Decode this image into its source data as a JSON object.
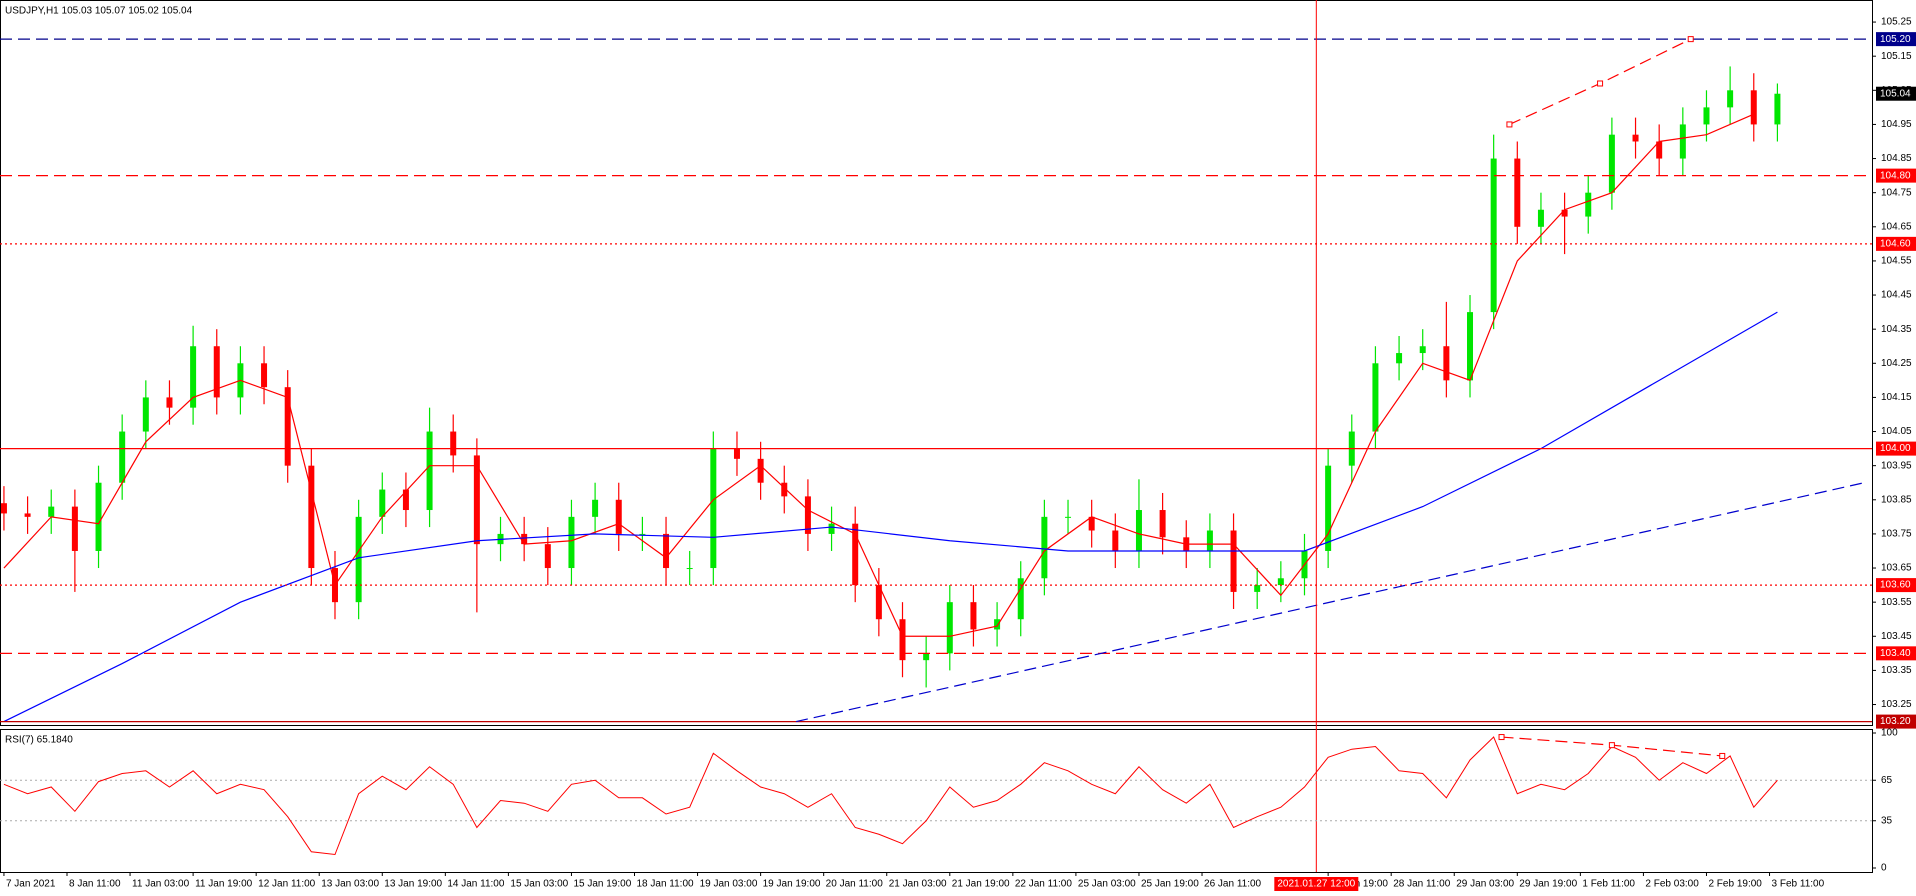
{
  "chart_data": [
    {
      "type": "candlestick",
      "title": "USDJPY,H1  105.03 105.07 105.02 105.04",
      "x": [
        0,
        6,
        12,
        18,
        24,
        30,
        36,
        42,
        48,
        54,
        60,
        66,
        72,
        78,
        84,
        90,
        96,
        102,
        108,
        114,
        120,
        126,
        132,
        138,
        144,
        150,
        156,
        162,
        168,
        174,
        180,
        186,
        192,
        198,
        204,
        210,
        216,
        222,
        228,
        234,
        240,
        246,
        252,
        258,
        264,
        270,
        276,
        282,
        288,
        294,
        300,
        306,
        312,
        318,
        324,
        330,
        336,
        342,
        348,
        354,
        360,
        366,
        372,
        378,
        384,
        390,
        396,
        402,
        408,
        414,
        420,
        426,
        432,
        438,
        444,
        450
      ],
      "open": [
        103.84,
        103.81,
        103.8,
        103.83,
        103.7,
        103.9,
        104.05,
        104.15,
        104.12,
        104.3,
        104.15,
        104.25,
        104.18,
        103.95,
        103.65,
        103.55,
        103.8,
        103.88,
        103.82,
        104.05,
        103.98,
        103.72,
        103.75,
        103.72,
        103.65,
        103.8,
        103.85,
        103.75,
        103.75,
        103.65,
        103.65,
        104.0,
        103.97,
        103.9,
        103.86,
        103.75,
        103.78,
        103.6,
        103.5,
        103.38,
        103.4,
        103.55,
        103.47,
        103.5,
        103.62,
        103.8,
        103.8,
        103.76,
        103.7,
        103.82,
        103.74,
        103.7,
        103.76,
        103.58,
        103.6,
        103.62,
        103.7,
        103.95,
        104.05,
        104.25,
        104.28,
        104.3,
        104.2,
        104.4,
        104.85,
        104.65,
        104.7,
        104.68,
        104.75,
        104.92,
        104.9,
        104.85,
        104.95,
        105.0,
        105.05,
        104.95
      ],
      "high": [
        103.89,
        103.86,
        103.88,
        103.88,
        103.95,
        104.1,
        104.2,
        104.2,
        104.36,
        104.35,
        104.3,
        104.3,
        104.23,
        104.0,
        103.7,
        103.85,
        103.93,
        103.93,
        104.12,
        104.1,
        104.03,
        103.8,
        103.8,
        103.77,
        103.85,
        103.9,
        103.9,
        103.8,
        103.8,
        103.7,
        104.05,
        104.05,
        104.02,
        103.95,
        103.91,
        103.83,
        103.83,
        103.65,
        103.55,
        103.45,
        103.6,
        103.6,
        103.55,
        103.67,
        103.85,
        103.85,
        103.85,
        103.81,
        103.91,
        103.87,
        103.79,
        103.81,
        103.81,
        103.65,
        103.67,
        103.75,
        104.0,
        104.1,
        104.3,
        104.33,
        104.35,
        104.43,
        104.45,
        104.92,
        104.9,
        104.75,
        104.75,
        104.8,
        104.97,
        104.97,
        104.95,
        105.0,
        105.05,
        105.12,
        105.1,
        105.07
      ],
      "low": [
        103.76,
        103.75,
        103.75,
        103.58,
        103.65,
        103.85,
        104.0,
        104.07,
        104.07,
        104.1,
        104.1,
        104.13,
        103.9,
        103.6,
        103.5,
        103.5,
        103.75,
        103.77,
        103.77,
        103.93,
        103.52,
        103.67,
        103.67,
        103.6,
        103.6,
        103.75,
        103.7,
        103.7,
        103.6,
        103.6,
        103.6,
        103.92,
        103.85,
        103.81,
        103.7,
        103.7,
        103.55,
        103.45,
        103.33,
        103.3,
        103.35,
        103.42,
        103.42,
        103.45,
        103.57,
        103.75,
        103.71,
        103.65,
        103.65,
        103.69,
        103.65,
        103.65,
        103.53,
        103.53,
        103.55,
        103.57,
        103.65,
        103.9,
        104.0,
        104.2,
        104.23,
        104.15,
        104.15,
        104.35,
        104.6,
        104.6,
        104.57,
        104.63,
        104.7,
        104.85,
        104.8,
        104.8,
        104.9,
        104.95,
        104.9,
        104.9
      ],
      "close": [
        103.81,
        103.8,
        103.83,
        103.7,
        103.9,
        104.05,
        104.15,
        104.12,
        104.3,
        104.15,
        104.25,
        104.18,
        103.95,
        103.65,
        103.55,
        103.8,
        103.88,
        103.82,
        104.05,
        103.98,
        103.72,
        103.75,
        103.72,
        103.65,
        103.8,
        103.85,
        103.75,
        103.75,
        103.65,
        103.65,
        104.0,
        103.97,
        103.9,
        103.86,
        103.75,
        103.78,
        103.6,
        103.5,
        103.38,
        103.4,
        103.55,
        103.47,
        103.5,
        103.62,
        103.8,
        103.8,
        103.76,
        103.7,
        103.82,
        103.74,
        103.7,
        103.76,
        103.58,
        103.6,
        103.62,
        103.7,
        103.95,
        104.05,
        104.25,
        104.28,
        104.3,
        104.2,
        104.4,
        104.85,
        104.65,
        104.7,
        104.68,
        104.75,
        104.92,
        104.9,
        104.85,
        104.95,
        105.0,
        105.05,
        104.95,
        105.04
      ],
      "up_color": "#00e600",
      "down_color": "#ff0000",
      "overlays": [
        {
          "color": "#ff0000",
          "x": [
            0,
            12,
            24,
            36,
            48,
            60,
            72,
            84,
            96,
            108,
            120,
            132,
            144,
            156,
            168,
            180,
            192,
            204,
            216,
            228,
            240,
            252,
            264,
            276,
            288,
            300,
            312,
            324,
            336,
            348,
            360,
            372,
            384,
            396,
            408,
            420,
            432,
            444
          ],
          "values": [
            103.65,
            103.8,
            103.78,
            104.02,
            104.15,
            104.2,
            104.15,
            103.6,
            103.8,
            103.95,
            103.95,
            103.72,
            103.73,
            103.78,
            103.68,
            103.85,
            103.95,
            103.82,
            103.75,
            103.45,
            103.45,
            103.48,
            103.7,
            103.8,
            103.75,
            103.72,
            103.72,
            103.57,
            103.75,
            104.05,
            104.25,
            104.2,
            104.55,
            104.7,
            104.75,
            104.9,
            104.92,
            104.98
          ]
        },
        {
          "color": "#0000ff",
          "x": [
            0,
            30,
            60,
            90,
            120,
            150,
            180,
            210,
            240,
            270,
            300,
            330,
            360,
            390,
            420,
            450
          ],
          "values": [
            103.2,
            103.37,
            103.55,
            103.68,
            103.73,
            103.75,
            103.74,
            103.77,
            103.73,
            103.7,
            103.7,
            103.7,
            103.83,
            104.0,
            104.2,
            104.4
          ]
        }
      ],
      "levels": [
        {
          "value": 105.2,
          "label": "105.20",
          "color": "#00008b",
          "style": "dashed"
        },
        {
          "value": 104.8,
          "label": "104.80",
          "color": "#ff0000",
          "style": "dashed"
        },
        {
          "value": 104.6,
          "label": "104.60",
          "color": "#ff0000",
          "style": "dotted"
        },
        {
          "value": 104.0,
          "label": "104.00",
          "color": "#ff0000",
          "style": "solid"
        },
        {
          "value": 103.6,
          "label": "103.60",
          "color": "#ff0000",
          "style": "dotted"
        },
        {
          "value": 103.4,
          "label": "103.40",
          "color": "#ff0000",
          "style": "dashed"
        },
        {
          "value": 103.2,
          "label": "103.20",
          "color": "#c00000",
          "style": "solid"
        }
      ],
      "trendlines": [
        {
          "x": [
            201,
            472
          ],
          "values": [
            103.2,
            103.9
          ],
          "color": "#0000cd",
          "style": "dashed"
        },
        {
          "x": [
            382,
            405,
            428
          ],
          "values": [
            104.95,
            105.07,
            105.2
          ],
          "color": "#ff0000",
          "style": "dashed"
        }
      ],
      "current": {
        "value": 105.04,
        "label": "105.04",
        "color": "#000000"
      },
      "crosshair": {
        "value": 333,
        "label": "2021.01.27 12:00",
        "color": "#ff0000"
      },
      "xlim": [
        -1,
        474
      ],
      "ylim": [
        103.19,
        105.3
      ],
      "yticks": [
        103.25,
        103.35,
        103.45,
        103.55,
        103.65,
        103.75,
        103.85,
        103.95,
        104.05,
        104.15,
        104.25,
        104.35,
        104.45,
        104.55,
        104.65,
        104.75,
        104.85,
        104.95,
        105.05,
        105.15,
        105.25
      ],
      "xticks": [
        {
          "value": 0,
          "label": "7 Jan 2021"
        },
        {
          "value": 16,
          "label": "8 Jan 11:00"
        },
        {
          "value": 32,
          "label": "11 Jan 03:00"
        },
        {
          "value": 48,
          "label": "11 Jan 19:00"
        },
        {
          "value": 64,
          "label": "12 Jan 11:00"
        },
        {
          "value": 80,
          "label": "13 Jan 03:00"
        },
        {
          "value": 96,
          "label": "13 Jan 19:00"
        },
        {
          "value": 112,
          "label": "14 Jan 11:00"
        },
        {
          "value": 128,
          "label": "15 Jan 03:00"
        },
        {
          "value": 144,
          "label": "15 Jan 19:00"
        },
        {
          "value": 160,
          "label": "18 Jan 11:00"
        },
        {
          "value": 176,
          "label": "19 Jan 03:00"
        },
        {
          "value": 192,
          "label": "19 Jan 19:00"
        },
        {
          "value": 208,
          "label": "20 Jan 11:00"
        },
        {
          "value": 224,
          "label": "21 Jan 03:00"
        },
        {
          "value": 240,
          "label": "21 Jan 19:00"
        },
        {
          "value": 256,
          "label": "22 Jan 11:00"
        },
        {
          "value": 272,
          "label": "25 Jan 03:00"
        },
        {
          "value": 288,
          "label": "25 Jan 19:00"
        },
        {
          "value": 304,
          "label": "26 Jan 11:00"
        },
        {
          "value": 336,
          "label": "27 Jan 19:00"
        },
        {
          "value": 352,
          "label": "28 Jan 11:00"
        },
        {
          "value": 368,
          "label": "29 Jan 03:00"
        },
        {
          "value": 384,
          "label": "29 Jan 19:00"
        },
        {
          "value": 400,
          "label": "1 Feb 11:00"
        },
        {
          "value": 416,
          "label": "2 Feb 03:00"
        },
        {
          "value": 432,
          "label": "2 Feb 19:00"
        },
        {
          "value": 448,
          "label": "3 Feb 11:00"
        }
      ]
    },
    {
      "type": "line",
      "title": "RSI(7) 65.1840",
      "color": "#ff0000",
      "x": [
        0,
        6,
        12,
        18,
        24,
        30,
        36,
        42,
        48,
        54,
        60,
        66,
        72,
        78,
        84,
        90,
        96,
        102,
        108,
        114,
        120,
        126,
        132,
        138,
        144,
        150,
        156,
        162,
        168,
        174,
        180,
        186,
        192,
        198,
        204,
        210,
        216,
        222,
        228,
        234,
        240,
        246,
        252,
        258,
        264,
        270,
        276,
        282,
        288,
        294,
        300,
        306,
        312,
        318,
        324,
        330,
        336,
        342,
        348,
        354,
        360,
        366,
        372,
        378,
        384,
        390,
        396,
        402,
        408,
        414,
        420,
        426,
        432,
        438,
        444,
        450
      ],
      "values": [
        62,
        55,
        60,
        42,
        64,
        70,
        72,
        60,
        72,
        55,
        62,
        58,
        38,
        12,
        10,
        55,
        68,
        58,
        75,
        62,
        30,
        50,
        48,
        42,
        62,
        65,
        52,
        52,
        40,
        45,
        85,
        72,
        60,
        55,
        45,
        55,
        30,
        25,
        18,
        35,
        60,
        45,
        50,
        62,
        78,
        72,
        62,
        55,
        75,
        58,
        48,
        62,
        30,
        38,
        45,
        60,
        82,
        88,
        90,
        72,
        70,
        52,
        80,
        97,
        55,
        62,
        58,
        70,
        90,
        82,
        65,
        78,
        70,
        83,
        45,
        65
      ],
      "trendlines": [
        {
          "x": [
            380,
            408,
            436
          ],
          "values": [
            97,
            91,
            83
          ],
          "color": "#ff0000",
          "style": "dashed"
        }
      ],
      "xlim": [
        -1,
        474
      ],
      "ylim": [
        0,
        100
      ],
      "yticks": [
        0,
        35,
        65,
        100
      ],
      "grid": true
    }
  ]
}
